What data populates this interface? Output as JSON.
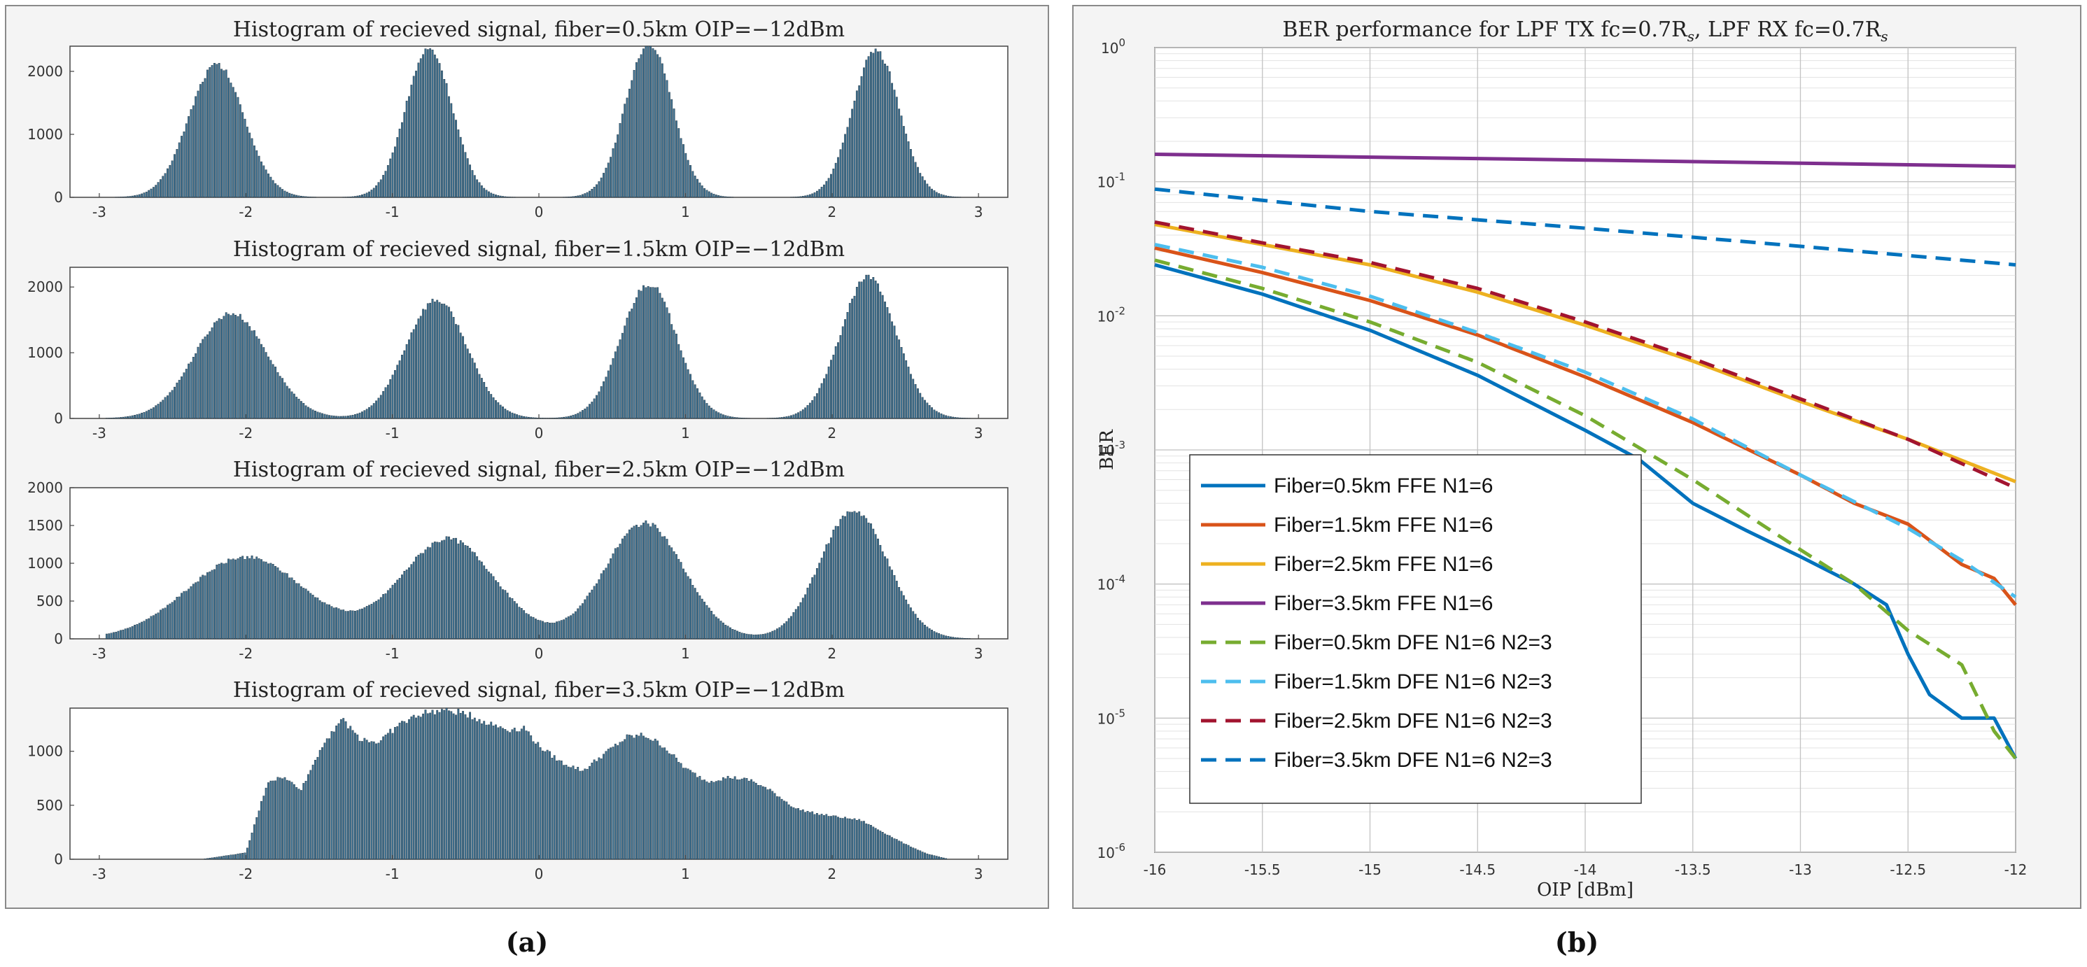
{
  "colors": {
    "hist_fill": "#3d6f8e",
    "hist_edge": "#1b2a36"
  },
  "chart_data": [
    {
      "type": "bar",
      "title": "Histogram of recieved signal, fiber=0.5km OIP=−12dBm",
      "xlim": [
        -3.2,
        3.2
      ],
      "ylim": [
        0,
        2400
      ],
      "xticks": [
        "-3",
        "-2",
        "-1",
        "0",
        "1",
        "2",
        "3"
      ],
      "yticks": [
        "0",
        "1000",
        "2000"
      ],
      "components": [
        {
          "center": -2.2,
          "amplitude": 2100,
          "sigma": 0.19
        },
        {
          "center": -0.75,
          "amplitude": 2350,
          "sigma": 0.16
        },
        {
          "center": 0.75,
          "amplitude": 2450,
          "sigma": 0.16
        },
        {
          "center": 2.3,
          "amplitude": 2330,
          "sigma": 0.16
        }
      ]
    },
    {
      "type": "bar",
      "title": "Histogram of recieved signal, fiber=1.5km OIP=−12dBm",
      "xlim": [
        -3.2,
        3.2
      ],
      "ylim": [
        0,
        2300
      ],
      "xticks": [
        "-3",
        "-2",
        "-1",
        "0",
        "1",
        "2",
        "3"
      ],
      "yticks": [
        "0",
        "1000",
        "2000"
      ],
      "components": [
        {
          "center": -2.1,
          "amplitude": 1600,
          "sigma": 0.25
        },
        {
          "center": -0.7,
          "amplitude": 1800,
          "sigma": 0.21
        },
        {
          "center": 0.75,
          "amplitude": 2050,
          "sigma": 0.19
        },
        {
          "center": 2.25,
          "amplitude": 2150,
          "sigma": 0.19
        }
      ]
    },
    {
      "type": "bar",
      "title": "Histogram of recieved signal, fiber=2.5km OIP=−12dBm",
      "xlim": [
        -3.2,
        3.2
      ],
      "ylim": [
        0,
        2000
      ],
      "xticks": [
        "-3",
        "-2",
        "-1",
        "0",
        "1",
        "2",
        "3"
      ],
      "yticks": [
        "0",
        "500",
        "1000",
        "1500",
        "2000"
      ],
      "components": [
        {
          "center": -2.0,
          "amplitude": 1080,
          "sigma": 0.4
        },
        {
          "center": -0.62,
          "amplitude": 1320,
          "sigma": 0.32
        },
        {
          "center": 0.72,
          "amplitude": 1530,
          "sigma": 0.27
        },
        {
          "center": 2.15,
          "amplitude": 1700,
          "sigma": 0.23
        }
      ]
    },
    {
      "type": "bar",
      "title": "Histogram of recieved signal, fiber=3.5km OIP=−12dBm",
      "xlim": [
        -3.2,
        3.2
      ],
      "ylim": [
        0,
        1400
      ],
      "xticks": [
        "-3",
        "-2",
        "-1",
        "0",
        "1",
        "2",
        "3"
      ],
      "yticks": [
        "0",
        "500",
        "1000"
      ],
      "profile_x": [
        -2.3,
        -2.0,
        -1.85,
        -1.75,
        -1.62,
        -1.48,
        -1.35,
        -1.22,
        -1.1,
        -0.95,
        -0.8,
        -0.65,
        -0.5,
        -0.35,
        -0.2,
        -0.1,
        0.0,
        0.15,
        0.3,
        0.45,
        0.6,
        0.72,
        0.85,
        1.0,
        1.15,
        1.3,
        1.45,
        1.6,
        1.75,
        1.9,
        2.05,
        2.2,
        2.35,
        2.5,
        2.65,
        2.8
      ],
      "profile_y": [
        0,
        60,
        720,
        760,
        650,
        1050,
        1300,
        1120,
        1080,
        1250,
        1350,
        1380,
        1350,
        1260,
        1200,
        1220,
        1050,
        900,
        820,
        980,
        1130,
        1150,
        1050,
        840,
        720,
        760,
        730,
        620,
        470,
        420,
        390,
        360,
        250,
        140,
        50,
        0
      ]
    },
    {
      "type": "line",
      "title": "BER performance for LPF TX fc=0.7R",
      "title_sub": "s",
      "title_mid": ", LPF RX fc=0.7R",
      "title_sub2": "s",
      "xlabel": "OIP [dBm]",
      "ylabel": "BER",
      "xlim": [
        -16,
        -12
      ],
      "ylim_log10": [
        -6,
        0
      ],
      "grid": "on",
      "legend_position": "bottom-left",
      "xticks": [
        "-16",
        "-15.5",
        "-15",
        "-14.5",
        "-14",
        "-13.5",
        "-13",
        "-12.5",
        "-12"
      ],
      "yticks": [
        {
          "base": "10",
          "exp": "0"
        },
        {
          "base": "10",
          "exp": "-1"
        },
        {
          "base": "10",
          "exp": "-2"
        },
        {
          "base": "10",
          "exp": "-3"
        },
        {
          "base": "10",
          "exp": "-4"
        },
        {
          "base": "10",
          "exp": "-5"
        },
        {
          "base": "10",
          "exp": "-6"
        }
      ],
      "series": [
        {
          "name": "Fiber=0.5km FFE N1=6",
          "color": "#0072bd",
          "dash": "solid",
          "x": [
            -16,
            -15.5,
            -15,
            -14.5,
            -14,
            -13.75,
            -13.5,
            -13.25,
            -13,
            -12.75,
            -12.6,
            -12.5,
            -12.4,
            -12.25,
            -12.1,
            -12
          ],
          "y": [
            0.024,
            0.0145,
            0.0078,
            0.0036,
            0.0014,
            0.00085,
            0.0004,
            0.00025,
            0.00016,
            0.0001,
            7e-05,
            3e-05,
            1.5e-05,
            1e-05,
            1e-05,
            5e-06
          ]
        },
        {
          "name": "Fiber=1.5km FFE N1=6",
          "color": "#d95319",
          "dash": "solid",
          "x": [
            -16,
            -15.5,
            -15,
            -14.5,
            -14,
            -13.5,
            -13,
            -12.75,
            -12.5,
            -12.25,
            -12.1,
            -12
          ],
          "y": [
            0.032,
            0.021,
            0.013,
            0.0072,
            0.0035,
            0.0016,
            0.00065,
            0.0004,
            0.00028,
            0.00014,
            0.00011,
            7e-05
          ]
        },
        {
          "name": "Fiber=2.5km FFE N1=6",
          "color": "#edb120",
          "dash": "solid",
          "x": [
            -16,
            -15.5,
            -15,
            -14.5,
            -14,
            -13.5,
            -13,
            -12.5,
            -12
          ],
          "y": [
            0.048,
            0.034,
            0.024,
            0.015,
            0.0085,
            0.0046,
            0.0023,
            0.0012,
            0.00058
          ]
        },
        {
          "name": "Fiber=3.5km FFE N1=6",
          "color": "#7e2f8e",
          "dash": "solid",
          "x": [
            -16,
            -14,
            -12
          ],
          "y": [
            0.16,
            0.145,
            0.13
          ]
        },
        {
          "name": "Fiber=0.5km DFE N1=6 N2=3",
          "color": "#77ac30",
          "dash": "dashed",
          "x": [
            -16,
            -15.5,
            -15,
            -14.5,
            -14,
            -13.5,
            -13,
            -12.75,
            -12.5,
            -12.25,
            -12.1,
            -12
          ],
          "y": [
            0.026,
            0.016,
            0.009,
            0.0045,
            0.0018,
            0.0006,
            0.00018,
            0.0001,
            4.5e-05,
            2.5e-05,
            8e-06,
            5e-06
          ]
        },
        {
          "name": "Fiber=1.5km DFE N1=6 N2=3",
          "color": "#4dbeee",
          "dash": "dashed",
          "x": [
            -16,
            -15.5,
            -15,
            -14.5,
            -14,
            -13.5,
            -13,
            -12.5,
            -12.25,
            -12
          ],
          "y": [
            0.034,
            0.023,
            0.014,
            0.0075,
            0.0038,
            0.0017,
            0.00065,
            0.00026,
            0.00015,
            8e-05
          ]
        },
        {
          "name": "Fiber=2.5km DFE N1=6 N2=3",
          "color": "#a2142f",
          "dash": "dashed",
          "x": [
            -16,
            -15.5,
            -15,
            -14.5,
            -14,
            -13.5,
            -13,
            -12.5,
            -12
          ],
          "y": [
            0.05,
            0.035,
            0.025,
            0.016,
            0.009,
            0.0048,
            0.0024,
            0.0012,
            0.00052
          ]
        },
        {
          "name": "Fiber=3.5km DFE N1=6 N2=3",
          "color": "#0072bd",
          "dash": "dashed",
          "x": [
            -16,
            -15,
            -14,
            -13,
            -12
          ],
          "y": [
            0.088,
            0.06,
            0.045,
            0.033,
            0.024
          ]
        }
      ]
    }
  ],
  "captions": {
    "left": "(a)",
    "right": "(b)"
  }
}
